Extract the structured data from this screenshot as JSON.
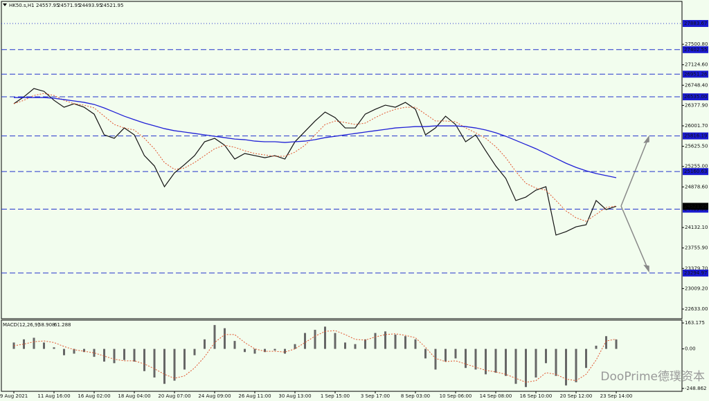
{
  "chart_data": [
    {
      "type": "line",
      "title": "HK50.s,H1",
      "ohlc": [
        24557.95,
        24571.95,
        24493.95,
        24521.95
      ],
      "x": [
        "9 Aug 2021",
        null,
        null,
        null,
        "11 Aug 16:00",
        null,
        null,
        null,
        "16 Aug 02:00",
        null,
        null,
        null,
        "18 Aug 04:00",
        null,
        null,
        null,
        "20 Aug 07:00",
        null,
        null,
        null,
        "24 Aug 09:00",
        null,
        null,
        null,
        "26 Aug 11:00",
        null,
        null,
        null,
        "30 Aug 13:00",
        null,
        null,
        null,
        "1 Sep 15:00",
        null,
        null,
        null,
        "3 Sep 17:00",
        null,
        null,
        null,
        "8 Sep 03:00",
        null,
        null,
        null,
        "10 Sep 06:00",
        null,
        null,
        null,
        "14 Sep 08:00",
        null,
        null,
        null,
        "16 Sep 10:00",
        null,
        null,
        null,
        "20 Sep 12:00",
        null,
        null,
        null,
        "23 Sep 14:00"
      ],
      "series": [
        {
          "color": "#111111",
          "width": 1.2,
          "dash": "none",
          "values": [
            26408,
            26535,
            26687,
            26636,
            26471,
            26344,
            26408,
            26344,
            26217,
            25836,
            25772,
            25963,
            25836,
            25454,
            25264,
            24882,
            25137,
            25289,
            25454,
            25709,
            25772,
            25645,
            25391,
            25493,
            25454,
            25416,
            25454,
            25391,
            25709,
            25899,
            26090,
            26255,
            26153,
            25963,
            25963,
            26217,
            26306,
            26382,
            26344,
            26433,
            26306,
            25836,
            25963,
            26179,
            26026,
            25709,
            25836,
            25544,
            25264,
            25035,
            24628,
            24692,
            24819,
            24882,
            23993,
            24056,
            24145,
            24183,
            24628,
            24463,
            24521.95
          ]
        },
        {
          "color": "#e0522b",
          "width": 1,
          "dash": "2 2",
          "values": [
            26408,
            26471,
            26560,
            26598,
            26560,
            26471,
            26408,
            26382,
            26331,
            26179,
            26026,
            25963,
            25925,
            25772,
            25581,
            25327,
            25200,
            25226,
            25327,
            25454,
            25581,
            25645,
            25607,
            25543,
            25493,
            25467,
            25442,
            25442,
            25518,
            25645,
            25836,
            26026,
            26090,
            26064,
            26026,
            26052,
            26153,
            26242,
            26306,
            26344,
            26344,
            26217,
            26090,
            26090,
            26077,
            25963,
            25874,
            25772,
            25620,
            25417,
            25162,
            24946,
            24857,
            24819,
            24628,
            24438,
            24310,
            24247,
            24374,
            24501,
            24527
          ]
        },
        {
          "color": "#1f1fd6",
          "width": 1.3,
          "dash": "none",
          "values": [
            26522,
            26522,
            26522,
            26522,
            26509,
            26484,
            26459,
            26433,
            26395,
            26331,
            26255,
            26179,
            26115,
            26052,
            26001,
            25950,
            25912,
            25887,
            25861,
            25836,
            25810,
            25785,
            25759,
            25747,
            25721,
            25709,
            25709,
            25696,
            25709,
            25721,
            25747,
            25785,
            25810,
            25836,
            25861,
            25887,
            25912,
            25937,
            25963,
            25975,
            25988,
            25988,
            26001,
            26001,
            26001,
            25988,
            25963,
            25925,
            25874,
            25810,
            25734,
            25658,
            25581,
            25492,
            25403,
            25314,
            25238,
            25175,
            25124,
            25086,
            25048
          ]
        }
      ],
      "ylim": [
        22455,
        28290
      ],
      "yticks": [
        {
          "value": 22633,
          "label": "22633.00"
        },
        {
          "value": 23009.2,
          "label": "23009.20"
        },
        {
          "value": 23379.7,
          "label": "23379.70"
        },
        {
          "value": 23755.9,
          "label": "23755.90"
        },
        {
          "value": 24132.1,
          "label": "24132.10"
        },
        {
          "value": 24878.6,
          "label": "24878.60"
        },
        {
          "value": 25255,
          "label": "25255.00"
        },
        {
          "value": 25625.5,
          "label": "25625.50"
        },
        {
          "value": 26001.7,
          "label": "26001.70"
        },
        {
          "value": 26377.9,
          "label": "26377.90"
        },
        {
          "value": 26748.4,
          "label": "26748.40"
        },
        {
          "value": 27124.6,
          "label": "27124.60"
        },
        {
          "value": 27500.8,
          "label": "27500.80"
        }
      ],
      "dotted_level": 27883.67,
      "levels": [
        27402.55,
        26951.26,
        {
          "value": 26535,
          "label": "26535.00"
        },
        25816.19,
        25160.63,
        24469.58,
        23294.97
      ],
      "last_price": 24521.95,
      "watermark": "DooPrime德璞资本"
    },
    {
      "type": "macd",
      "title": "MACD(12,26,9)",
      "last": [
        58.908,
        61.288
      ],
      "histogram": [
        40,
        60,
        70,
        40,
        10,
        -40,
        -30,
        -20,
        -50,
        -80,
        -90,
        -70,
        -80,
        -140,
        -180,
        -220,
        -200,
        -130,
        -40,
        60,
        150,
        130,
        50,
        -20,
        -30,
        -20,
        -10,
        -30,
        30,
        100,
        120,
        140,
        100,
        40,
        30,
        60,
        100,
        110,
        90,
        80,
        60,
        -60,
        -130,
        -80,
        -60,
        -120,
        -130,
        -160,
        -150,
        -170,
        -220,
        -240,
        -180,
        -90,
        -170,
        -230,
        -210,
        -120,
        20,
        80,
        58.908
      ],
      "signal": [
        20,
        30,
        45,
        50,
        40,
        15,
        -5,
        -15,
        -25,
        -45,
        -65,
        -75,
        -75,
        -95,
        -125,
        -160,
        -185,
        -170,
        -120,
        -50,
        40,
        90,
        90,
        40,
        0,
        -15,
        -15,
        -20,
        0,
        40,
        80,
        110,
        115,
        90,
        60,
        55,
        75,
        90,
        95,
        85,
        70,
        10,
        -60,
        -80,
        -75,
        -95,
        -115,
        -135,
        -145,
        -160,
        -185,
        -210,
        -200,
        -150,
        -160,
        -190,
        -200,
        -160,
        -70,
        50,
        61.288
      ],
      "ylim": [
        -267,
        181
      ],
      "yticks": [
        163.175,
        {
          "value": 0,
          "label": "0.00"
        },
        -248.862
      ]
    }
  ]
}
